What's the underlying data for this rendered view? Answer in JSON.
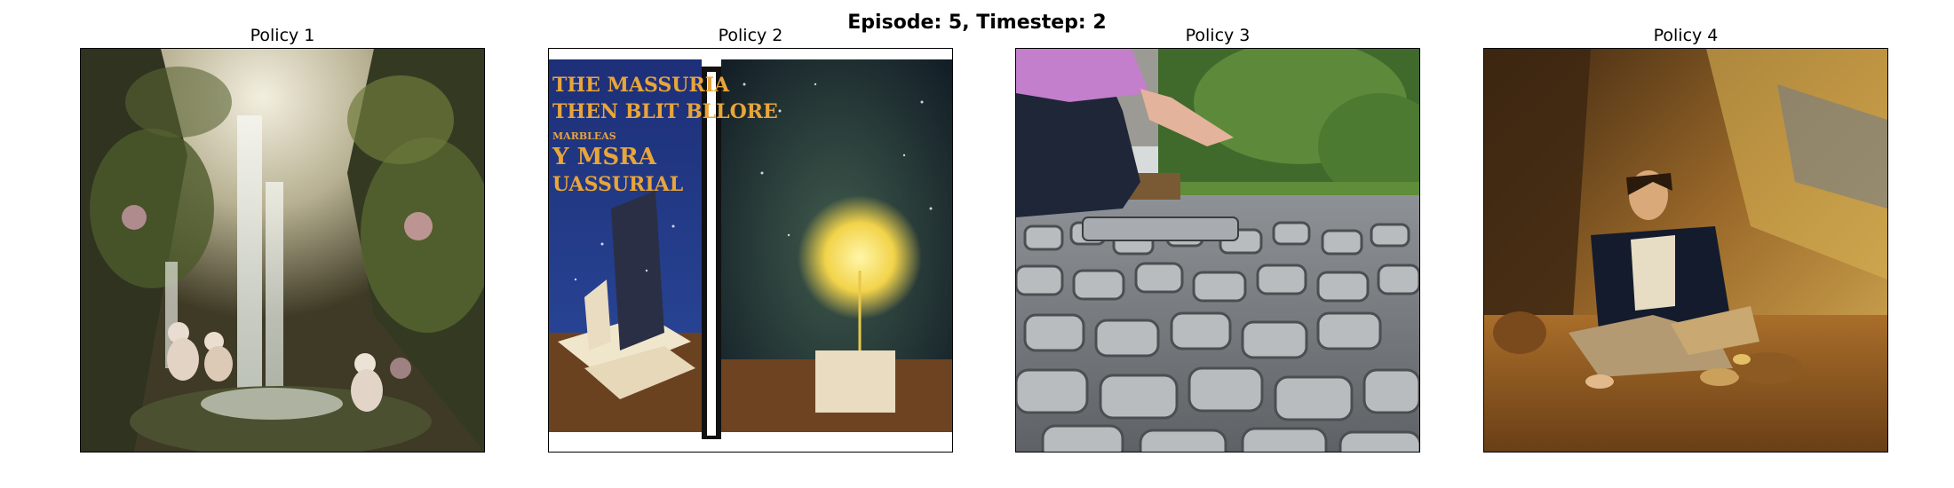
{
  "figure": {
    "suptitle": "Episode: 5, Timestep: 2"
  },
  "panels": [
    {
      "title": "Policy 1",
      "image": "painting of a fantasy waterfall grotto with lush greenery and cherub-like figures"
    },
    {
      "title": "Policy 2",
      "image": "illustration of an open book under a starry night sky with a glowing light and scattered books",
      "book_text": [
        "THE MASSURIA",
        "THEN BLIT BLLORE",
        "MARBLEAS",
        "Y MSRA",
        "UASSURIAL"
      ]
    },
    {
      "title": "Policy 3",
      "image": "photo of a hand hovering over a cobblestone pavement with green shrubs in the background"
    },
    {
      "title": "Policy 4",
      "image": "oil painting of a seated young man in dark coat in a warm golden-brown interior"
    }
  ]
}
